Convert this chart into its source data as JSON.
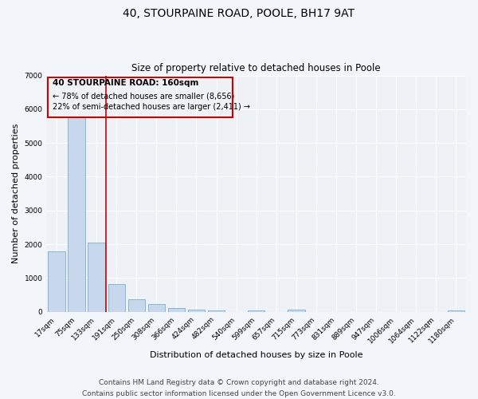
{
  "title": "40, STOURPAINE ROAD, POOLE, BH17 9AT",
  "subtitle": "Size of property relative to detached houses in Poole",
  "xlabel": "Distribution of detached houses by size in Poole",
  "ylabel": "Number of detached properties",
  "bar_color": "#c8d8ec",
  "bar_edge_color": "#7bafd4",
  "categories": [
    "17sqm",
    "75sqm",
    "133sqm",
    "191sqm",
    "250sqm",
    "308sqm",
    "366sqm",
    "424sqm",
    "482sqm",
    "540sqm",
    "599sqm",
    "657sqm",
    "715sqm",
    "773sqm",
    "831sqm",
    "889sqm",
    "947sqm",
    "1006sqm",
    "1064sqm",
    "1122sqm",
    "1180sqm"
  ],
  "values": [
    1780,
    5750,
    2060,
    820,
    370,
    220,
    105,
    60,
    50,
    0,
    50,
    0,
    60,
    0,
    0,
    0,
    0,
    0,
    0,
    0,
    50
  ],
  "ylim": [
    0,
    7000
  ],
  "yticks": [
    0,
    1000,
    2000,
    3000,
    4000,
    5000,
    6000,
    7000
  ],
  "vline_color": "#cc0000",
  "annotation_line1": "40 STOURPAINE ROAD: 160sqm",
  "annotation_line2": "← 78% of detached houses are smaller (8,656)",
  "annotation_line3": "22% of semi-detached houses are larger (2,411) →",
  "footer_line1": "Contains HM Land Registry data © Crown copyright and database right 2024.",
  "footer_line2": "Contains public sector information licensed under the Open Government Licence v3.0.",
  "bg_color": "#f2f6fa",
  "plot_bg_color": "#eef2f7",
  "grid_color": "#ffffff",
  "title_fontsize": 10,
  "subtitle_fontsize": 8.5,
  "tick_fontsize": 6.5,
  "ylabel_fontsize": 8,
  "xlabel_fontsize": 8,
  "footer_fontsize": 6.5
}
